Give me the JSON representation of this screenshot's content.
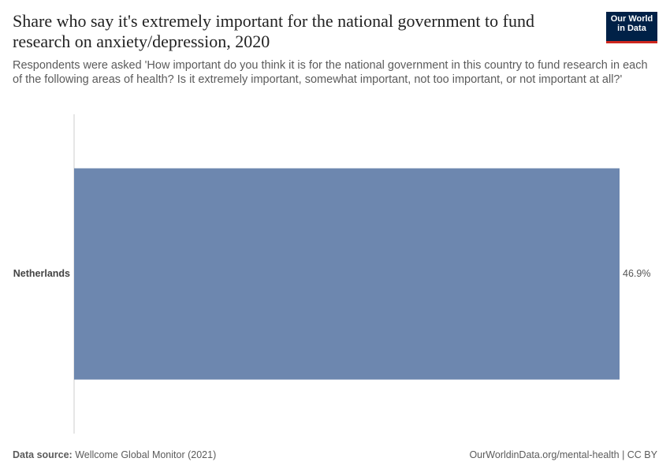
{
  "chart_data": {
    "type": "bar",
    "orientation": "horizontal",
    "title": "Share who say it's extremely important for the national government to fund research on anxiety/depression, 2020",
    "subtitle": "Respondents were asked 'How important do you think it is for the national government in this country to fund research in each of the following areas of health? Is it extremely important, somewhat important, not too important, or not important at all?'",
    "categories": [
      "Netherlands"
    ],
    "values": [
      46.9
    ],
    "value_labels": [
      "46.9%"
    ],
    "color": "#6d87af"
  },
  "logo": [
    "Our World",
    "in Data"
  ],
  "footer": {
    "source_label": "Data source:",
    "source": "Wellcome Global Monitor (2021)",
    "url": "OurWorldinData.org/mental-health | CC BY"
  }
}
